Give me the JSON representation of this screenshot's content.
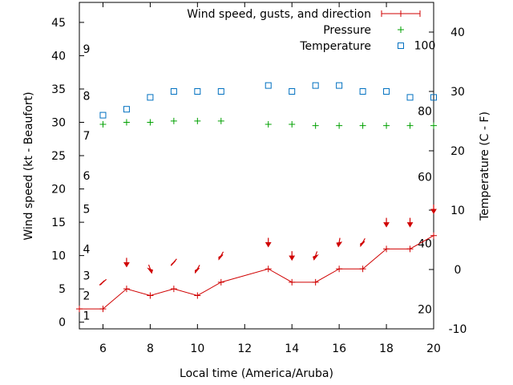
{
  "chart_data": {
    "type": "line",
    "xlabel": "Local time (America/Aruba)",
    "ylabel_left": "Wind speed (kt - Beaufort)",
    "ylabel_right": "Temperature (C - F)",
    "xlim": [
      5,
      20
    ],
    "ylim_left": [
      -1,
      48
    ],
    "ylim_right": [
      -10,
      45
    ],
    "x_ticks": [
      6,
      8,
      10,
      12,
      14,
      16,
      18,
      20
    ],
    "y_left_ticks": [
      0,
      5,
      10,
      15,
      20,
      25,
      30,
      35,
      40,
      45
    ],
    "y_right_ticks": [
      -10,
      0,
      10,
      20,
      30,
      40
    ],
    "beaufort_labels": [
      {
        "label": "1",
        "kt": 1
      },
      {
        "label": "2",
        "kt": 4
      },
      {
        "label": "3",
        "kt": 7
      },
      {
        "label": "4",
        "kt": 11
      },
      {
        "label": "5",
        "kt": 17
      },
      {
        "label": "6",
        "kt": 22
      },
      {
        "label": "7",
        "kt": 28
      },
      {
        "label": "8",
        "kt": 34
      },
      {
        "label": "9",
        "kt": 41
      }
    ],
    "fahrenheit_labels": [
      {
        "label": "20",
        "celsius": -6.7
      },
      {
        "label": "40",
        "celsius": 4.4
      },
      {
        "label": "60",
        "celsius": 15.6
      },
      {
        "label": "80",
        "celsius": 26.7
      },
      {
        "label": "100",
        "celsius": 37.8
      }
    ],
    "legend": [
      {
        "name": "Wind speed, gusts, and direction",
        "color": "#d00000",
        "symbol": "line-plus"
      },
      {
        "name": "Pressure",
        "color": "#00a000",
        "symbol": "plus"
      },
      {
        "name": "Temperature",
        "color": "#0070c0",
        "symbol": "square"
      }
    ],
    "legend_position": "top-right",
    "series": [
      {
        "name": "Wind speed",
        "color": "#d00000",
        "x": [
          5,
          6,
          7,
          8,
          9,
          10,
          11,
          13,
          14,
          15,
          16,
          17,
          18,
          19,
          20
        ],
        "values": [
          2,
          2,
          5,
          4,
          5,
          4,
          6,
          8,
          6,
          6,
          8,
          8,
          11,
          11,
          13
        ]
      },
      {
        "name": "Wind direction",
        "color": "#d00000",
        "x": [
          6,
          7,
          8,
          9,
          10,
          11,
          13,
          14,
          15,
          16,
          17,
          18,
          19,
          20
        ],
        "values": [
          6,
          9,
          8,
          9,
          8,
          10,
          12,
          10,
          10,
          12,
          12,
          15,
          15,
          17
        ],
        "direction_deg": [
          40,
          90,
          110,
          50,
          60,
          60,
          90,
          90,
          70,
          80,
          60,
          90,
          90,
          90
        ]
      },
      {
        "name": "Pressure",
        "color": "#00a000",
        "x": [
          6,
          7,
          8,
          9,
          10,
          11,
          13,
          14,
          15,
          16,
          17,
          18,
          19,
          20
        ],
        "values": [
          29.7,
          30.0,
          30.0,
          30.2,
          30.2,
          30.2,
          29.7,
          29.7,
          29.5,
          29.5,
          29.5,
          29.5,
          29.5,
          29.5
        ]
      },
      {
        "name": "Temperature",
        "color": "#0070c0",
        "x": [
          6,
          7,
          8,
          9,
          10,
          11,
          13,
          14,
          15,
          16,
          17,
          18,
          19,
          20
        ],
        "values": [
          26,
          27,
          29,
          30,
          30,
          30,
          31,
          30,
          31,
          31,
          30,
          30,
          29,
          29
        ]
      }
    ]
  }
}
